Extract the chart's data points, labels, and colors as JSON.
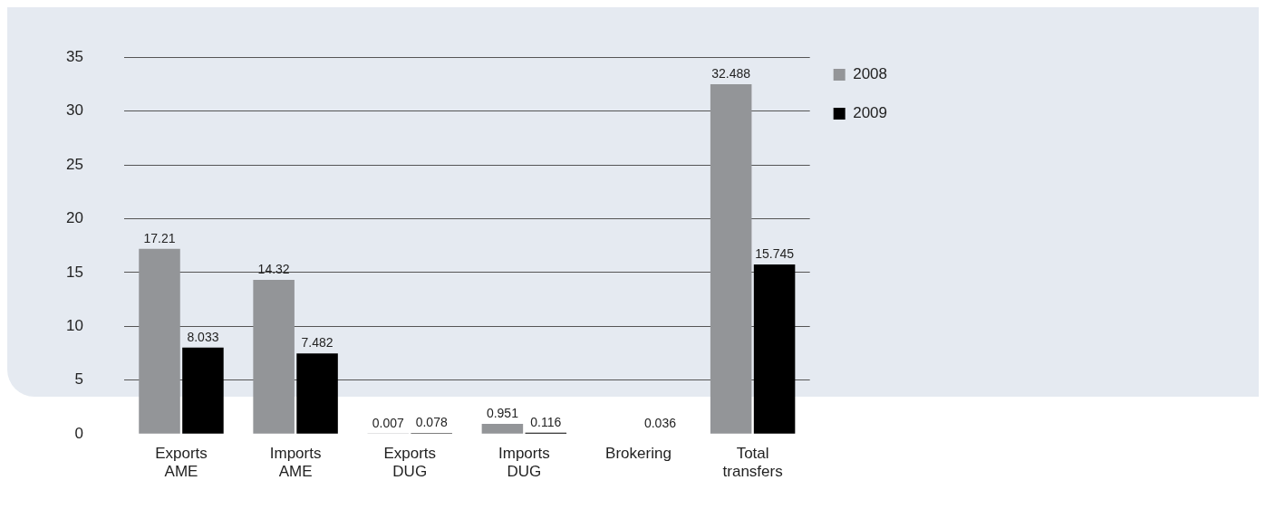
{
  "chart_data": {
    "type": "bar",
    "categories": [
      "Exports AME",
      "Imports AME",
      "Exports DUG",
      "Imports DUG",
      "Brokering",
      "Total transfers"
    ],
    "series": [
      {
        "name": "2008",
        "color": "#939598",
        "values": [
          17.21,
          14.32,
          0.007,
          0.951,
          null,
          32.488
        ],
        "value_labels": [
          "17.21",
          "14.32",
          "0.007",
          "0.951",
          null,
          "32.488"
        ]
      },
      {
        "name": "2009",
        "color": "#000000",
        "values": [
          8.033,
          7.482,
          0.078,
          0.116,
          0.036,
          15.745
        ],
        "value_labels": [
          "8.033",
          "7.482",
          "0.078",
          "0.116",
          "0.036",
          "15.745"
        ]
      }
    ],
    "ylim": [
      0,
      35
    ],
    "yticks": [
      0,
      5,
      10,
      15,
      20,
      25,
      30,
      35
    ],
    "grid": "y",
    "legend": "top right"
  }
}
